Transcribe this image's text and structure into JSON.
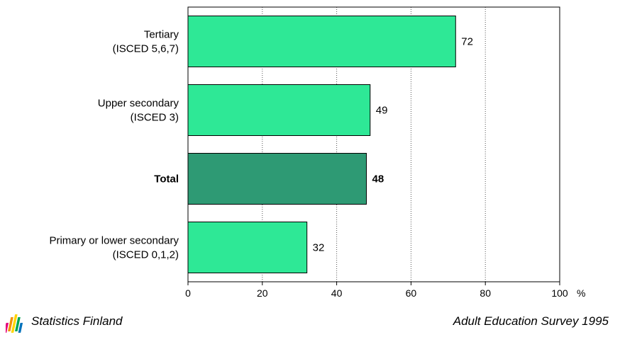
{
  "chart_data": {
    "type": "bar",
    "orientation": "horizontal",
    "categories": [
      [
        "Tertiary",
        "(ISCED 5,6,7)"
      ],
      [
        "Upper secondary",
        "(ISCED 3)"
      ],
      [
        "Total"
      ],
      [
        "Primary or lower secondary",
        "(ISCED 0,1,2)"
      ]
    ],
    "values": [
      72,
      49,
      48,
      32
    ],
    "highlight_index": 2,
    "xlim": [
      0,
      100
    ],
    "xticks": [
      0,
      20,
      40,
      60,
      80,
      100
    ],
    "unit": "%",
    "grid": "vertical dotted",
    "colors": {
      "bar": "#2ee896",
      "highlight": "#2e9a74",
      "edge": "#000000",
      "grid": "#555555"
    }
  },
  "footer": {
    "left": "Statistics Finland",
    "right": "Adult Education Survey 1995"
  },
  "logo_colors": [
    "#e4007c",
    "#f39200",
    "#ffd500",
    "#00a651",
    "#0072bc"
  ]
}
